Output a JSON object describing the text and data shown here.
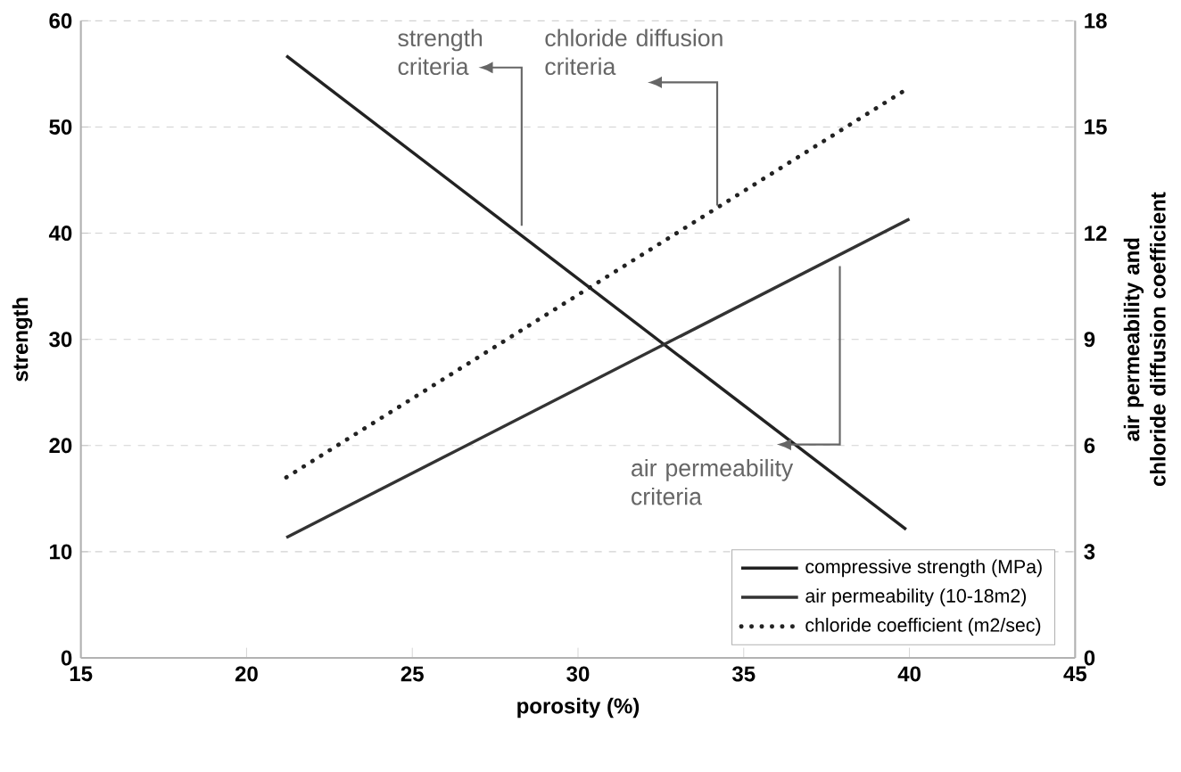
{
  "chart_data": {
    "type": "line",
    "xlabel": "porosity (%)",
    "ylabel": "strength",
    "y2label": "air permeability and chloride diffusion coefficient",
    "xlim": [
      15,
      45
    ],
    "xticks": [
      15,
      20,
      25,
      30,
      35,
      40,
      45
    ],
    "ylim": [
      0,
      60
    ],
    "yticks": [
      0,
      10,
      20,
      30,
      40,
      50,
      60
    ],
    "y2lim": [
      0,
      18
    ],
    "y2ticks": [
      0,
      3,
      6,
      9,
      12,
      15,
      18
    ],
    "grid": "y",
    "legend": "bottom right",
    "series": [
      {
        "name": "compressive strength (MPa)",
        "color": "#222222",
        "axis": "y",
        "line_style": "solid",
        "x": [
          21.2,
          39.9
        ],
        "values": [
          56.7,
          12.1
        ]
      },
      {
        "name": "air permeability (10-18m2)",
        "color": "#333333",
        "axis": "y2",
        "line_style": "solid",
        "x": [
          21.2,
          40.0
        ],
        "values": [
          3.4,
          12.4
        ]
      },
      {
        "name": "chloride coefficient (m2/sec)",
        "color": "#222222",
        "axis": "y2",
        "line_style": "dotted",
        "x": [
          21.2,
          39.8
        ],
        "values": [
          5.1,
          16.0
        ]
      }
    ],
    "annotations": [
      {
        "text": "strength criteria",
        "x": 28.3,
        "y": 40.7
      },
      {
        "text": "chloride diffusion criteria",
        "x": 34.2,
        "y": 42.6
      },
      {
        "text": "air permeability criteria",
        "x": 37.9,
        "y": 36.9
      }
    ]
  }
}
